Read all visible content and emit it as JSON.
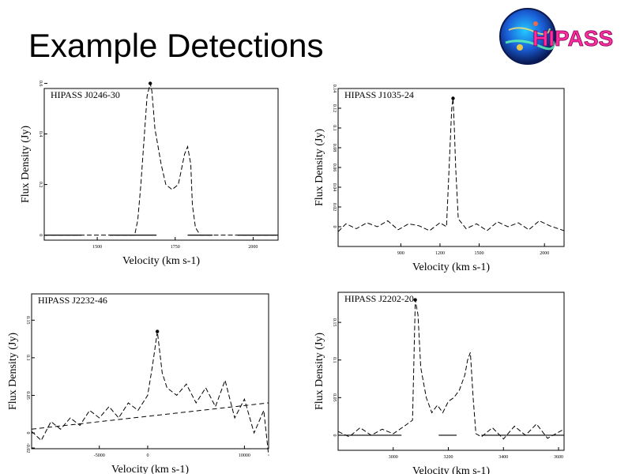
{
  "slide": {
    "title": "Example Detections",
    "logo_text": "HIPASS"
  },
  "chart_data": [
    {
      "type": "line",
      "label": "HIPASS J0246-30",
      "xlabel": "Velocity (km s-1)",
      "ylabel": "Flux Density (Jy)",
      "xlim": [
        1330,
        2080
      ],
      "ylim": [
        -0.02,
        0.58
      ],
      "xticks": [
        1500,
        1750,
        2000
      ],
      "yticks": [
        0,
        0.2,
        0.4,
        0.6
      ],
      "x": [
        1330,
        1400,
        1450,
        1500,
        1550,
        1600,
        1620,
        1630,
        1640,
        1660,
        1670,
        1675,
        1680,
        1685,
        1695,
        1705,
        1720,
        1740,
        1760,
        1770,
        1780,
        1790,
        1800,
        1805,
        1815,
        1830,
        1860,
        1900,
        1950,
        2000,
        2080
      ],
      "values": [
        0.0,
        0.0,
        0.0,
        0.0,
        0.0,
        0.0,
        0.0,
        0.06,
        0.2,
        0.55,
        0.6,
        0.57,
        0.5,
        0.42,
        0.35,
        0.28,
        0.2,
        0.18,
        0.2,
        0.26,
        0.32,
        0.35,
        0.28,
        0.12,
        0.03,
        0.0,
        0.0,
        0.0,
        0.0,
        0.0,
        0.0
      ],
      "baselines": [
        [
          1330,
          1450
        ],
        [
          1540,
          1690
        ],
        [
          1790,
          1870
        ],
        [
          1950,
          2080
        ]
      ]
    },
    {
      "type": "line",
      "label": "HIPASS J1035-24",
      "xlabel": "Velocity (km s-1)",
      "ylabel": "Flux Density (Jy)",
      "xlim": [
        420,
        2150
      ],
      "ylim": [
        -0.02,
        0.14
      ],
      "xticks": [
        900,
        1200,
        1500,
        2000
      ],
      "yticks": [
        0,
        0.02,
        0.04,
        0.06,
        0.08,
        0.1,
        0.12,
        0.14
      ],
      "x": [
        420,
        480,
        560,
        640,
        720,
        800,
        880,
        960,
        1040,
        1120,
        1200,
        1250,
        1270,
        1290,
        1300,
        1310,
        1320,
        1340,
        1400,
        1480,
        1560,
        1640,
        1720,
        1800,
        1880,
        1960,
        2040,
        2150
      ],
      "values": [
        -0.005,
        0.003,
        -0.002,
        0.004,
        0.0,
        0.006,
        -0.003,
        0.003,
        0.001,
        -0.004,
        0.004,
        0.0,
        0.06,
        0.12,
        0.13,
        0.1,
        0.06,
        0.008,
        -0.002,
        0.003,
        -0.004,
        0.005,
        0.0,
        0.004,
        -0.003,
        0.006,
        0.001,
        -0.004
      ]
    },
    {
      "type": "line",
      "label": "HIPASS J2232-46",
      "xlabel": "Velocity (km s-1)",
      "ylabel": "Flux Density (Jy)",
      "xlim": [
        -12000,
        12500
      ],
      "ylim": [
        -0.021,
        0.185
      ],
      "xticks": [
        -5000,
        0,
        10000
      ],
      "yticks": [
        -0.02,
        0,
        0.05,
        0.1,
        0.15
      ],
      "x": [
        -12000,
        -11000,
        -10000,
        -9000,
        -8000,
        -7000,
        -6000,
        -5000,
        -4000,
        -3000,
        -2000,
        -1000,
        0,
        500,
        1000,
        1500,
        2000,
        3000,
        4000,
        5000,
        6000,
        7000,
        8000,
        9000,
        10000,
        11000,
        12000,
        12500
      ],
      "values": [
        0.002,
        -0.01,
        0.015,
        0.005,
        0.02,
        0.01,
        0.03,
        0.02,
        0.035,
        0.02,
        0.04,
        0.03,
        0.05,
        0.09,
        0.135,
        0.08,
        0.06,
        0.05,
        0.065,
        0.04,
        0.06,
        0.035,
        0.07,
        0.02,
        0.045,
        0.0,
        0.03,
        -0.03
      ],
      "fit_line": [
        [
          -12000,
          0.005
        ],
        [
          12500,
          0.04
        ]
      ]
    },
    {
      "type": "line",
      "label": "HIPASS J2202-20",
      "xlabel": "Velocity (km s-1)",
      "ylabel": "Flux Density (Jy)",
      "xlim": [
        2800,
        3620
      ],
      "ylim": [
        -0.02,
        0.19
      ],
      "xticks": [
        3000,
        3200,
        3400,
        3600
      ],
      "yticks": [
        0,
        0.05,
        0.1,
        0.15
      ],
      "x": [
        2800,
        2840,
        2880,
        2920,
        2960,
        3000,
        3040,
        3070,
        3080,
        3090,
        3100,
        3120,
        3140,
        3160,
        3180,
        3200,
        3220,
        3240,
        3260,
        3270,
        3280,
        3290,
        3300,
        3320,
        3360,
        3400,
        3440,
        3480,
        3520,
        3560,
        3620
      ],
      "values": [
        0.005,
        -0.002,
        0.01,
        0.0,
        0.008,
        0.002,
        0.012,
        0.02,
        0.18,
        0.16,
        0.09,
        0.05,
        0.03,
        0.04,
        0.03,
        0.045,
        0.05,
        0.06,
        0.08,
        0.1,
        0.11,
        0.05,
        0.002,
        -0.002,
        0.01,
        -0.005,
        0.012,
        0.0,
        0.015,
        -0.004,
        0.008
      ],
      "baselines": [
        [
          2800,
          3030
        ],
        [
          3165,
          3230
        ],
        [
          3320,
          3620
        ]
      ]
    }
  ]
}
